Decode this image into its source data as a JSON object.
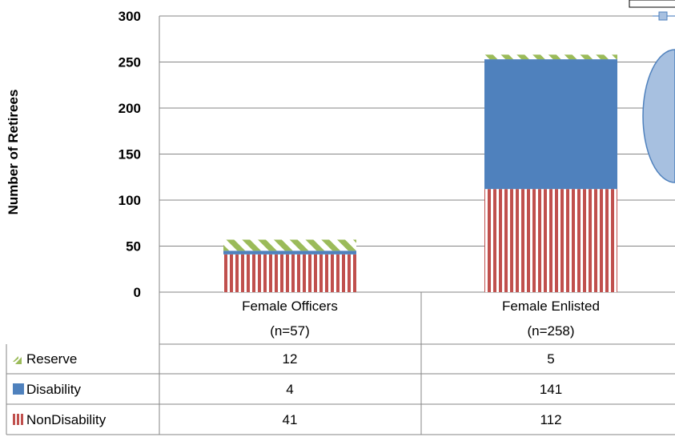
{
  "chart_data": {
    "type": "bar",
    "stacked": true,
    "ylabel": "Number of Retirees",
    "ylim": [
      0,
      300
    ],
    "yticks": [
      "0",
      "50",
      "100",
      "150",
      "200",
      "250",
      "300"
    ],
    "categories": [
      {
        "name": "Female Officers",
        "n": "(n=57)"
      },
      {
        "name": "Female Enlisted",
        "n": "(n=258)"
      }
    ],
    "series": [
      {
        "name": "NonDisability",
        "values": [
          41,
          112
        ],
        "color": "#c0504d",
        "pattern": "vertical-stripes"
      },
      {
        "name": "Disability",
        "values": [
          4,
          141
        ],
        "color": "#4f81bd",
        "pattern": "solid"
      },
      {
        "name": "Reserve",
        "values": [
          12,
          5
        ],
        "color": "#9bbb59",
        "pattern": "diagonal-dashes"
      }
    ],
    "table_rows": [
      {
        "label": "Reserve",
        "values": [
          "12",
          "5"
        ]
      },
      {
        "label": "Disability",
        "values": [
          "4",
          "141"
        ]
      },
      {
        "label": "NonDisability",
        "values": [
          "41",
          "112"
        ]
      }
    ],
    "grid": true,
    "legend": "data-table-row-keys"
  }
}
